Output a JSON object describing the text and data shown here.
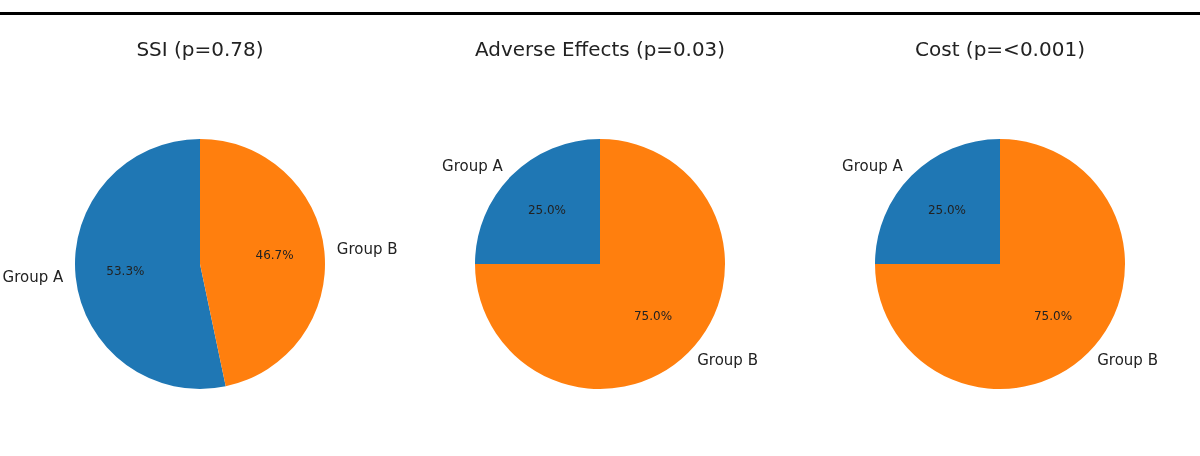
{
  "chart_data": [
    {
      "type": "pie",
      "title": "SSI (p=0.78)",
      "categories": [
        "Group A",
        "Group B"
      ],
      "values": [
        53.3,
        46.7
      ],
      "colors": [
        "#1f77b4",
        "#ff7f0e"
      ],
      "value_labels": [
        "53.3%",
        "46.7%"
      ],
      "legend": false
    },
    {
      "type": "pie",
      "title": "Adverse Effects (p=0.03)",
      "categories": [
        "Group A",
        "Group B"
      ],
      "values": [
        25,
        75
      ],
      "colors": [
        "#1f77b4",
        "#ff7f0e"
      ],
      "value_labels": [
        "25.0%",
        "75.0%"
      ],
      "legend": false
    },
    {
      "type": "pie",
      "title": "Cost (p=<0.001)",
      "categories": [
        "Group A",
        "Group B"
      ],
      "values": [
        25,
        75
      ],
      "colors": [
        "#1f77b4",
        "#ff7f0e"
      ],
      "value_labels": [
        "25.0%",
        "75.0%"
      ],
      "legend": false
    }
  ]
}
